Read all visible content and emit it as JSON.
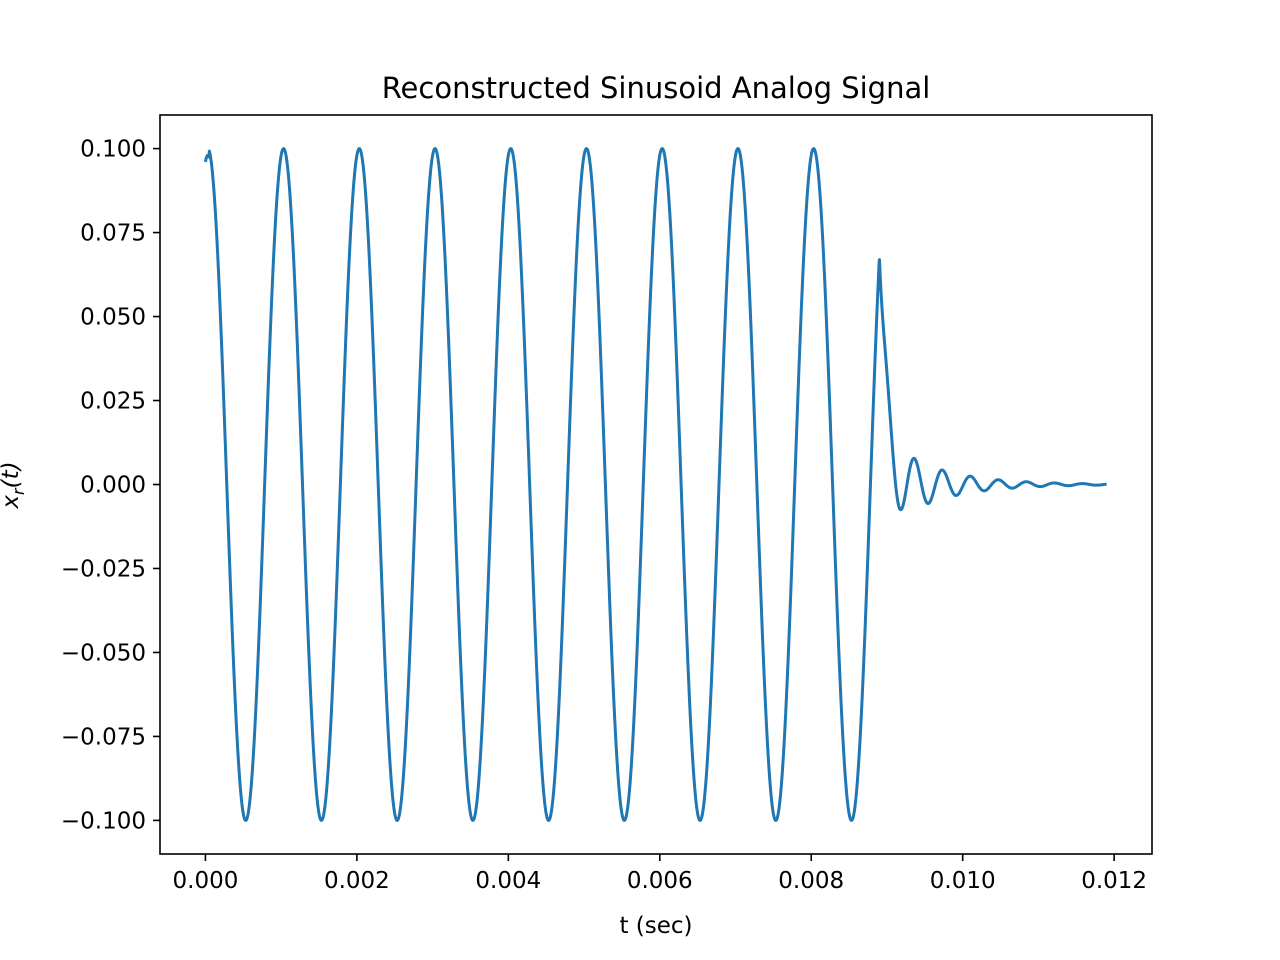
{
  "chart_data": {
    "type": "line",
    "title": "Reconstructed Sinusoid Analog Signal",
    "xlabel": "t (sec)",
    "ylabel": {
      "main": "x",
      "sub": "r",
      "arg": "(t)"
    },
    "xlim": [
      -0.0006,
      0.0125
    ],
    "ylim": [
      -0.11,
      0.11
    ],
    "xticks": [
      0.0,
      0.002,
      0.004,
      0.006,
      0.008,
      0.01,
      0.012
    ],
    "xtick_labels": [
      "0.000",
      "0.002",
      "0.004",
      "0.006",
      "0.008",
      "0.010",
      "0.012"
    ],
    "yticks": [
      0.1,
      0.075,
      0.05,
      0.025,
      0.0,
      -0.025,
      -0.05,
      -0.075,
      -0.1
    ],
    "ytick_labels": [
      "0.100",
      "0.075",
      "0.050",
      "0.025",
      "0.000",
      "−0.025",
      "−0.050",
      "−0.075",
      "−0.100"
    ],
    "grid": false,
    "series": [
      {
        "color": "#1f77b4",
        "signal": {
          "amplitude": 0.1,
          "frequency_hz": 1000,
          "phase_rad": 0.2,
          "t_start": 0.0,
          "t_end": 0.0119,
          "sinusoid_end": 0.0089,
          "ringing": {
            "amplitude": 0.015,
            "frequency_hz": 2700,
            "decay_per_sec": 1500
          }
        }
      }
    ]
  }
}
